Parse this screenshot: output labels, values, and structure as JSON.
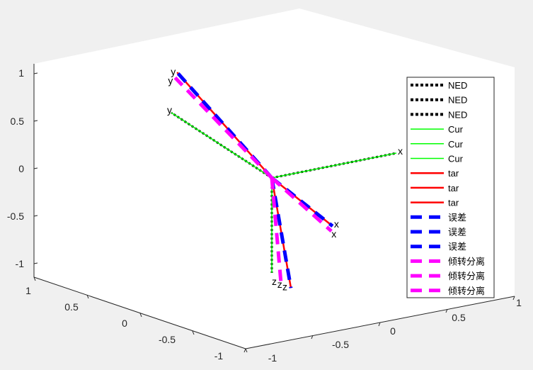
{
  "chart_data": {
    "type": "line",
    "view": "3d-axes",
    "grid": false,
    "legend_position": "right",
    "x_ticks": [
      "1",
      "0.5",
      "0",
      "-0.5",
      "-1"
    ],
    "y_ticks": [
      "-1",
      "-0.5",
      "0",
      "0.5",
      "1"
    ],
    "z_ticks": [
      "1",
      "0.5",
      "0",
      "-0.5",
      "-1"
    ],
    "colors": {
      "NED": "#000000",
      "NED_dots": "#ffffff",
      "Cur": "#00ff00",
      "tar": "#ff0000",
      "err": "#0000ff",
      "sep": "#ff00ff"
    },
    "series": [
      {
        "name": "NED",
        "color": "#000000",
        "style": "dotted",
        "axes": {
          "x": [
            1,
            0,
            0
          ],
          "y": [
            0,
            1,
            0
          ],
          "z": [
            0,
            0,
            -1
          ]
        }
      },
      {
        "name": "Cur",
        "color": "#00ff00",
        "style": "solid",
        "axes": {
          "x": [
            1,
            0,
            0
          ],
          "y": [
            0,
            1,
            0
          ],
          "z": [
            0,
            0,
            -1
          ]
        }
      },
      {
        "name": "tar",
        "color": "#ff0000",
        "style": "solid",
        "axes": {
          "x": [
            -0.02,
            -0.63,
            -0.07
          ],
          "y": [
            -0.05,
            0.88,
            0.52
          ],
          "z": [
            -0.25,
            -0.5,
            -0.75
          ]
        }
      },
      {
        "name": "误差",
        "color": "#0000ff",
        "style": "dashed",
        "axes": {
          "x": [
            -0.02,
            -0.63,
            -0.07
          ],
          "y": [
            -0.05,
            0.88,
            0.52
          ],
          "z": [
            -0.25,
            -0.5,
            -0.75
          ]
        }
      },
      {
        "name": "倾转分离",
        "color": "#ff00ff",
        "style": "dashed",
        "axes": {
          "x": [
            -0.03,
            -0.63,
            -0.12
          ],
          "y": [
            -0.05,
            0.9,
            0.45
          ],
          "z": [
            -0.25,
            -0.4,
            -0.75
          ]
        }
      }
    ],
    "axis_end_labels": {
      "NED": [
        "x",
        "y",
        "z"
      ],
      "tar": [
        "x",
        "y",
        "z"
      ],
      "sep": [
        "x",
        "y",
        "z"
      ]
    },
    "legend": [
      "NED",
      "NED",
      "NED",
      "Cur",
      "Cur",
      "Cur",
      "tar",
      "tar",
      "tar",
      "误差",
      "误差",
      "误差",
      "倾转分离",
      "倾转分离",
      "倾转分离"
    ]
  }
}
